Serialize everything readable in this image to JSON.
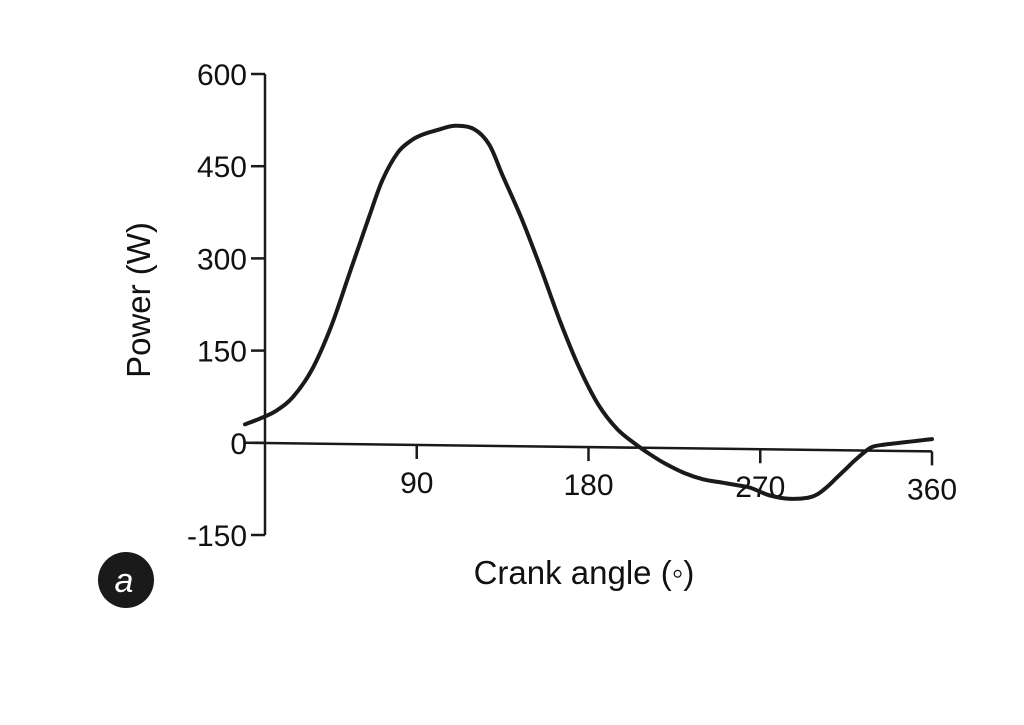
{
  "chart_data": {
    "type": "line",
    "title": "",
    "xlabel": "Crank angle (◦)",
    "ylabel": "Power (W)",
    "xlim": [
      0,
      360
    ],
    "ylim": [
      -150,
      600
    ],
    "x_ticks": [
      90,
      180,
      270,
      360
    ],
    "x_tick_labels": [
      "90",
      "180",
      "270",
      "360"
    ],
    "y_ticks": [
      600,
      450,
      300,
      150,
      0,
      -150
    ],
    "y_tick_labels": [
      "600",
      "450",
      "300",
      "150",
      "0",
      "-150"
    ],
    "grid": false,
    "legend": "none",
    "panel_label": "a",
    "line_color": "#1a1a1a",
    "series": [
      {
        "x": [
          0,
          8,
          16,
          25,
          35,
          45,
          55,
          65,
          72,
          80,
          87,
          93,
          100,
          110,
          120,
          128,
          135,
          145,
          155,
          165,
          175,
          185,
          195,
          205,
          212,
          220,
          230,
          240,
          250,
          260,
          265,
          275,
          285,
          295,
          300,
          305,
          310,
          315,
          320,
          328,
          335,
          340,
          345,
          350,
          355,
          360
        ],
        "y": [
          30,
          40,
          52,
          75,
          120,
          190,
          280,
          370,
          430,
          475,
          495,
          505,
          512,
          520,
          515,
          490,
          440,
          370,
          290,
          205,
          130,
          70,
          30,
          5,
          -10,
          -25,
          -40,
          -50,
          -55,
          -60,
          -63,
          -75,
          -80,
          -78,
          -72,
          -60,
          -45,
          -30,
          -15,
          5,
          10,
          12,
          14,
          16,
          18,
          20
        ]
      }
    ]
  }
}
